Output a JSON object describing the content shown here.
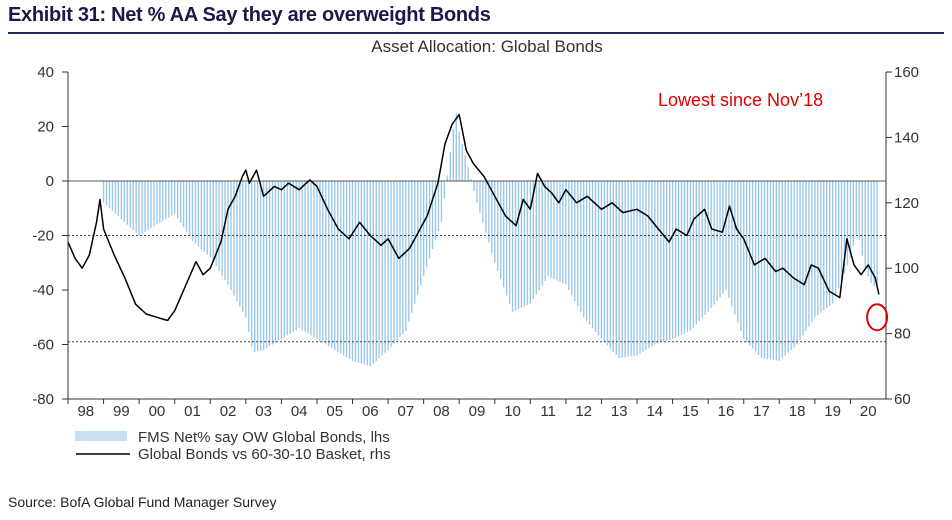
{
  "exhibit_title": "Exhibit 31: Net % AA Say they are overweight Bonds",
  "source": "Source: BofA Global Fund Manager Survey",
  "colors": {
    "bars": "#9cc8ea",
    "line": "#000000",
    "annotation": "#e00000",
    "title": "#1a1a4a"
  },
  "chart_data": {
    "type": "bar",
    "title": "Asset Allocation: Global Bonds",
    "x_tick_labels": [
      "98",
      "99",
      "00",
      "01",
      "02",
      "03",
      "04",
      "05",
      "06",
      "07",
      "08",
      "09",
      "10",
      "11",
      "12",
      "13",
      "14",
      "15",
      "16",
      "17",
      "18",
      "19",
      "20"
    ],
    "xlim": [
      1998.0,
      2021.0
    ],
    "y_left": {
      "ylim": [
        -80,
        40
      ],
      "ticks": [
        "40",
        "20",
        "0",
        "-20",
        "-40",
        "-60",
        "-80"
      ],
      "dashed_lines": [
        -20,
        -59
      ]
    },
    "y_right": {
      "ylim": [
        60,
        160
      ],
      "ticks": [
        "160",
        "140",
        "120",
        "100",
        "80",
        "60"
      ]
    },
    "annotation": "Lowest since Nov’18",
    "series": [
      {
        "name": "FMS Net% say OW Global Bonds, lhs",
        "type": "bar",
        "axis": "left",
        "points": [
          [
            1999.0,
            -8
          ],
          [
            1999.5,
            -14
          ],
          [
            2000.0,
            -20
          ],
          [
            2000.5,
            -16
          ],
          [
            2001.0,
            -12
          ],
          [
            2001.5,
            -22
          ],
          [
            2002.0,
            -28
          ],
          [
            2002.5,
            -38
          ],
          [
            2003.0,
            -50
          ],
          [
            2003.2,
            -63
          ],
          [
            2003.5,
            -62
          ],
          [
            2004.0,
            -58
          ],
          [
            2004.5,
            -54
          ],
          [
            2005.0,
            -58
          ],
          [
            2005.5,
            -62
          ],
          [
            2006.0,
            -66
          ],
          [
            2006.5,
            -68
          ],
          [
            2007.0,
            -62
          ],
          [
            2007.5,
            -55
          ],
          [
            2008.0,
            -35
          ],
          [
            2008.5,
            -15
          ],
          [
            2008.9,
            26
          ],
          [
            2009.0,
            18
          ],
          [
            2009.5,
            -8
          ],
          [
            2010.0,
            -30
          ],
          [
            2010.5,
            -48
          ],
          [
            2011.0,
            -45
          ],
          [
            2011.5,
            -35
          ],
          [
            2012.0,
            -38
          ],
          [
            2012.5,
            -50
          ],
          [
            2013.0,
            -58
          ],
          [
            2013.5,
            -65
          ],
          [
            2014.0,
            -64
          ],
          [
            2014.5,
            -60
          ],
          [
            2015.0,
            -58
          ],
          [
            2015.5,
            -55
          ],
          [
            2016.0,
            -48
          ],
          [
            2016.5,
            -40
          ],
          [
            2017.0,
            -58
          ],
          [
            2017.5,
            -65
          ],
          [
            2018.0,
            -66
          ],
          [
            2018.5,
            -60
          ],
          [
            2019.0,
            -50
          ],
          [
            2019.5,
            -45
          ],
          [
            2019.8,
            -35
          ],
          [
            2020.0,
            -28
          ],
          [
            2020.2,
            -18
          ],
          [
            2020.4,
            -32
          ],
          [
            2020.6,
            -38
          ],
          [
            2020.8,
            -40
          ]
        ]
      },
      {
        "name": "Global Bonds vs 60-30-10 Basket, rhs",
        "type": "line",
        "axis": "right",
        "points": [
          [
            1998.0,
            108
          ],
          [
            1998.2,
            103
          ],
          [
            1998.4,
            100
          ],
          [
            1998.6,
            104
          ],
          [
            1998.8,
            114
          ],
          [
            1998.9,
            121
          ],
          [
            1999.0,
            112
          ],
          [
            1999.3,
            104
          ],
          [
            1999.6,
            97
          ],
          [
            1999.9,
            89
          ],
          [
            2000.2,
            86
          ],
          [
            2000.5,
            85
          ],
          [
            2000.8,
            84
          ],
          [
            2001.0,
            87
          ],
          [
            2001.2,
            92
          ],
          [
            2001.4,
            97
          ],
          [
            2001.6,
            102
          ],
          [
            2001.8,
            98
          ],
          [
            2002.0,
            100
          ],
          [
            2002.3,
            108
          ],
          [
            2002.5,
            118
          ],
          [
            2002.7,
            122
          ],
          [
            2002.9,
            128
          ],
          [
            2003.0,
            130
          ],
          [
            2003.1,
            126
          ],
          [
            2003.3,
            130
          ],
          [
            2003.5,
            122
          ],
          [
            2003.8,
            125
          ],
          [
            2004.0,
            124
          ],
          [
            2004.2,
            126
          ],
          [
            2004.5,
            124
          ],
          [
            2004.8,
            127
          ],
          [
            2005.0,
            125
          ],
          [
            2005.3,
            118
          ],
          [
            2005.6,
            112
          ],
          [
            2005.9,
            109
          ],
          [
            2006.2,
            114
          ],
          [
            2006.5,
            110
          ],
          [
            2006.8,
            107
          ],
          [
            2007.0,
            109
          ],
          [
            2007.3,
            103
          ],
          [
            2007.6,
            106
          ],
          [
            2007.9,
            112
          ],
          [
            2008.1,
            116
          ],
          [
            2008.4,
            126
          ],
          [
            2008.6,
            138
          ],
          [
            2008.8,
            144
          ],
          [
            2009.0,
            147
          ],
          [
            2009.2,
            136
          ],
          [
            2009.4,
            132
          ],
          [
            2009.7,
            128
          ],
          [
            2010.0,
            122
          ],
          [
            2010.3,
            116
          ],
          [
            2010.6,
            113
          ],
          [
            2010.8,
            121
          ],
          [
            2011.0,
            118
          ],
          [
            2011.2,
            129
          ],
          [
            2011.4,
            125
          ],
          [
            2011.6,
            123
          ],
          [
            2011.8,
            120
          ],
          [
            2012.0,
            124
          ],
          [
            2012.3,
            120
          ],
          [
            2012.6,
            122
          ],
          [
            2013.0,
            118
          ],
          [
            2013.3,
            120
          ],
          [
            2013.6,
            117
          ],
          [
            2014.0,
            118
          ],
          [
            2014.3,
            116
          ],
          [
            2014.6,
            112
          ],
          [
            2014.9,
            108
          ],
          [
            2015.1,
            112
          ],
          [
            2015.4,
            110
          ],
          [
            2015.6,
            115
          ],
          [
            2015.9,
            118
          ],
          [
            2016.1,
            112
          ],
          [
            2016.4,
            111
          ],
          [
            2016.6,
            119
          ],
          [
            2016.8,
            112
          ],
          [
            2017.0,
            109
          ],
          [
            2017.3,
            101
          ],
          [
            2017.6,
            103
          ],
          [
            2017.9,
            99
          ],
          [
            2018.1,
            100
          ],
          [
            2018.4,
            97
          ],
          [
            2018.7,
            95
          ],
          [
            2018.9,
            101
          ],
          [
            2019.1,
            100
          ],
          [
            2019.4,
            93
          ],
          [
            2019.7,
            91
          ],
          [
            2019.9,
            109
          ],
          [
            2020.1,
            101
          ],
          [
            2020.3,
            98
          ],
          [
            2020.5,
            101
          ],
          [
            2020.7,
            97
          ],
          [
            2020.8,
            92
          ]
        ]
      }
    ],
    "legend_position": "bottom-left",
    "grid": false
  }
}
